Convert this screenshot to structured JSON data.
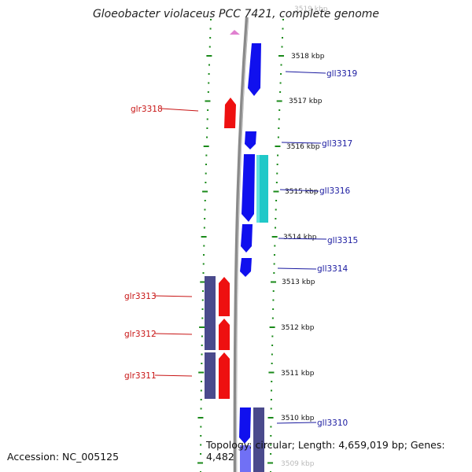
{
  "title": "Gloeobacter violaceus PCC 7421, complete genome",
  "footer": {
    "accession": "Accession: NC_005125",
    "topology": "Topology: circular; Length: 4,659,019 bp; Genes: 4,482"
  },
  "kbp_labels": [
    "3519 kbp",
    "3518 kbp",
    "3517 kbp",
    "3516 kbp",
    "3515 kbp",
    "3514 kbp",
    "3513 kbp",
    "3512 kbp",
    "3511 kbp",
    "3510 kbp",
    "3509 kbp"
  ],
  "genes": [
    {
      "id": "gll3319",
      "strand": "reverse",
      "color": "#1010ee"
    },
    {
      "id": "glr3318",
      "strand": "forward",
      "color": "#ee1010"
    },
    {
      "id": "gll3317",
      "strand": "reverse",
      "color": "#1010ee"
    },
    {
      "id": "gll3316",
      "strand": "reverse",
      "color": "#1010ee"
    },
    {
      "id": "gll3315",
      "strand": "reverse",
      "color": "#1010ee"
    },
    {
      "id": "gll3314",
      "strand": "reverse",
      "color": "#1010ee"
    },
    {
      "id": "glr3313",
      "strand": "forward",
      "color": "#ee1010"
    },
    {
      "id": "glr3312",
      "strand": "forward",
      "color": "#ee1010"
    },
    {
      "id": "glr3311",
      "strand": "forward",
      "color": "#ee1010"
    },
    {
      "id": "gll3310",
      "strand": "reverse",
      "color": "#1010ee"
    }
  ],
  "colors": {
    "reverse_gene": "#1010ee",
    "forward_gene": "#ee1010",
    "cyan_feature": "#20c8c8",
    "purple_feature": "#4a4a8c",
    "backbone": "#888888",
    "ruler": "#1a8a1a"
  }
}
